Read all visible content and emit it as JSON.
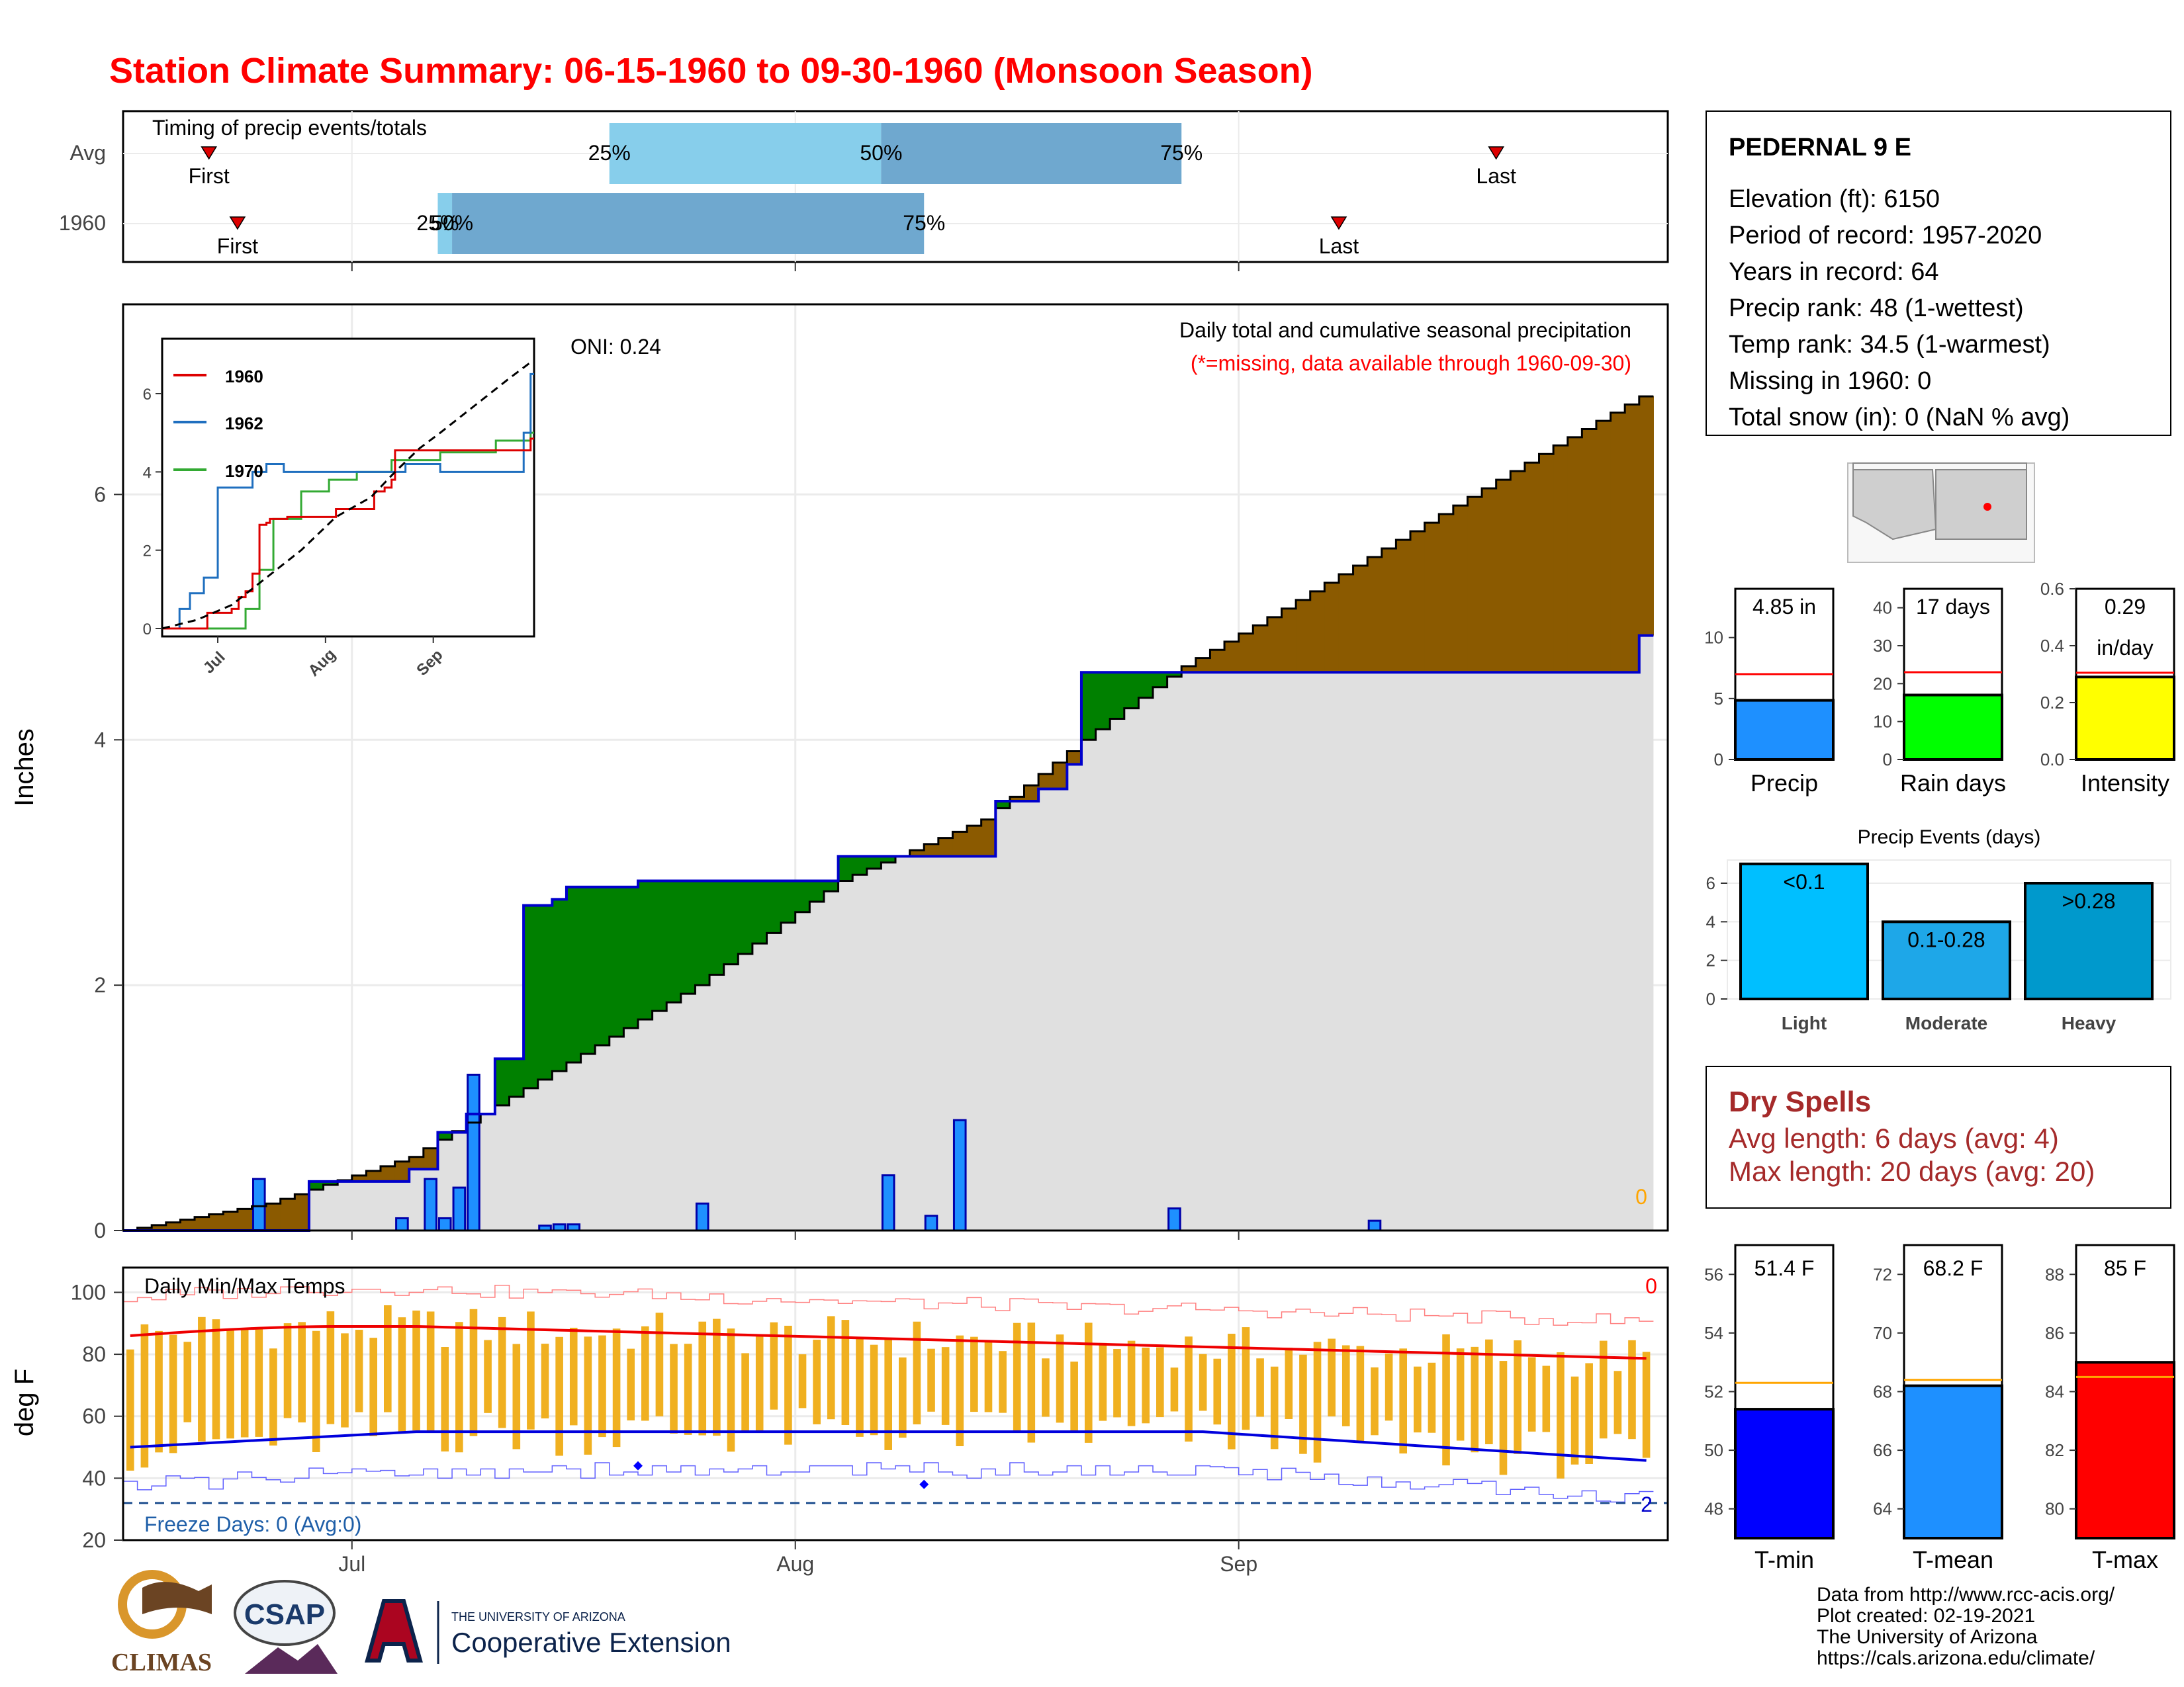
{
  "title": "Station Climate Summary: 06-15-1960 to 09-30-1960 (Monsoon Season)",
  "colors": {
    "title": "#ff0000",
    "precip_bar": "#1e90ff",
    "surplus": "#008000",
    "deficit": "#8b5a00",
    "avg_area": "#e0e0e0",
    "cum_line": "#0000cc",
    "tmax_line": "#ee0000",
    "tmin_line": "#0000dd",
    "temp_bar": "#f0b020",
    "dry_spell": "#a52a2a"
  },
  "timing_panel": {
    "title": "Timing of precip events/totals",
    "rows": [
      {
        "label": "Avg",
        "first_date": "06-21",
        "last_date": "09-19",
        "q25": "07-19",
        "q50": "08-07",
        "q75": "08-28"
      },
      {
        "label": "1960",
        "first_date": "06-23",
        "last_date": "09-08",
        "q25": "07-07",
        "q50": "07-08",
        "q75": "08-10"
      }
    ],
    "marker_labels": {
      "first": "First",
      "last": "Last",
      "q25": "25%",
      "q50": "50%",
      "q75": "75%"
    }
  },
  "main_panel": {
    "ylabel": "Inches",
    "oni": "ONI: 0.24",
    "subtitle": "Daily total and cumulative seasonal precipitation",
    "missing_note": "(*=missing, data available through 1960-09-30)",
    "missing_count": "0"
  },
  "temp_panel": {
    "ylabel": "deg F",
    "title": "Daily Min/Max Temps",
    "freeze_days": "Freeze Days: 0 (Avg:0)",
    "count_top": "0",
    "count_bottom": "2"
  },
  "x_ticks": [
    "Jul",
    "Aug",
    "Sep"
  ],
  "station": {
    "name": "PEDERNAL 9 E",
    "lines": [
      "Elevation (ft): 6150",
      "Period of record: 1957-2020",
      "Years in record: 64",
      "Precip rank: 48 (1-wettest)",
      "Temp rank: 34.5 (1-warmest)",
      "Missing in 1960: 0",
      "Total snow (in): 0 (NaN % avg)"
    ]
  },
  "summary_bars": [
    {
      "label": "Precip",
      "value": 4.85,
      "avg": 7.0,
      "value_label": "4.85 in",
      "color": "#1e90ff",
      "ymax": 14,
      "ticks": [
        "0",
        "5",
        "10"
      ],
      "tick_values": [
        0,
        5,
        10
      ]
    },
    {
      "label": "Rain days",
      "value": 17,
      "avg": 23,
      "value_label": "17 days",
      "color": "#00ff00",
      "ymax": 45,
      "ticks": [
        "0",
        "10",
        "20",
        "30",
        "40"
      ],
      "tick_values": [
        0,
        10,
        20,
        30,
        40
      ]
    },
    {
      "label": "Intensity",
      "value": 0.29,
      "avg": 0.305,
      "value_label": "0.29",
      "value_label2": "in/day",
      "color": "#ffff00",
      "ymax": 0.6,
      "ticks": [
        "0.0",
        "0.2",
        "0.4",
        "0.6"
      ],
      "tick_values": [
        0,
        0.2,
        0.4,
        0.6
      ]
    }
  ],
  "precip_events": {
    "title": "Precip Events (days)",
    "ticks": [
      "0",
      "2",
      "4",
      "6"
    ],
    "tick_values": [
      0,
      2,
      4,
      6
    ],
    "bars": [
      {
        "label": "Light",
        "value": 7,
        "bin": "<0.1",
        "color": "#00bfff"
      },
      {
        "label": "Moderate",
        "value": 4,
        "bin": "0.1-0.28",
        "color": "#1ea7e8"
      },
      {
        "label": "Heavy",
        "value": 6,
        "bin": ">0.28",
        "color": "#0099cc"
      }
    ]
  },
  "dry_spells": {
    "title": "Dry Spells",
    "avg_length": "Avg length: 6 days (avg: 4)",
    "max_length": "Max length: 20 days (avg: 20)"
  },
  "temp_summary": [
    {
      "label": "T-min",
      "value": 51.4,
      "avg": 52.3,
      "value_label": "51.4 F",
      "color": "#0000ff",
      "ymin": 47,
      "ymax": 57,
      "ticks": [
        "48",
        "50",
        "52",
        "54",
        "56"
      ],
      "tick_values": [
        48,
        50,
        52,
        54,
        56
      ]
    },
    {
      "label": "T-mean",
      "value": 68.2,
      "avg": 68.4,
      "value_label": "68.2 F",
      "color": "#1e90ff",
      "ymin": 63,
      "ymax": 73,
      "ticks": [
        "64",
        "66",
        "68",
        "70",
        "72"
      ],
      "tick_values": [
        64,
        66,
        68,
        70,
        72
      ]
    },
    {
      "label": "T-max",
      "value": 85,
      "avg": 84.5,
      "value_label": "85 F",
      "color": "#ff0000",
      "ymin": 79,
      "ymax": 89,
      "ticks": [
        "80",
        "82",
        "84",
        "86",
        "88"
      ],
      "tick_values": [
        80,
        82,
        84,
        86,
        88
      ]
    }
  ],
  "inset": {
    "legend": [
      "1960",
      "1962",
      "1970"
    ],
    "legend_colors": [
      "#dd0000",
      "#1f6fbf",
      "#33aa33"
    ],
    "yticks": [
      "0",
      "2",
      "4",
      "6"
    ],
    "xticks": [
      "Jul",
      "Aug",
      "Sep"
    ]
  },
  "footer": {
    "lines": [
      "Data from http://www.rcc-acis.org/",
      "Plot created: 02-19-2021",
      "The University of Arizona",
      "https://cals.arizona.edu/climate/"
    ],
    "climas": "CLIMAS",
    "csap": "CSAP",
    "ua_small": "THE UNIVERSITY OF ARIZONA",
    "ua_big": "Cooperative Extension"
  },
  "chart_data": {
    "type": "area",
    "xlabel": "",
    "ylabel": "Inches",
    "ylim": [
      0,
      7.5
    ],
    "x_range_days": [
      0,
      107
    ],
    "series": [
      {
        "name": "1960",
        "x_day": [
          0,
          13,
          20,
          22,
          24,
          26,
          28,
          30,
          31,
          36,
          50,
          61,
          64,
          66,
          67,
          106
        ],
        "y": [
          0.0,
          0.4,
          0.5,
          0.8,
          0.95,
          1.4,
          2.65,
          2.7,
          2.8,
          2.85,
          3.05,
          3.5,
          3.6,
          3.8,
          4.55,
          4.85
        ]
      },
      {
        "x_day": [
          0,
          10,
          20,
          30,
          40,
          50,
          60,
          67,
          74,
          80,
          90,
          100,
          106
        ],
        "y": [
          0.0,
          0.22,
          0.6,
          1.3,
          2.0,
          2.85,
          3.35,
          4.0,
          4.6,
          5.0,
          5.7,
          6.4,
          6.8
        ]
      }
    ],
    "daily_precip": [
      {
        "x_day": 9,
        "value": 0.42
      },
      {
        "x_day": 19,
        "value": 0.1
      },
      {
        "x_day": 21,
        "value": 0.42
      },
      {
        "x_day": 22,
        "value": 0.1
      },
      {
        "x_day": 23,
        "value": 0.35
      },
      {
        "x_day": 24,
        "value": 1.27
      },
      {
        "x_day": 29,
        "value": 0.04
      },
      {
        "x_day": 30,
        "value": 0.05
      },
      {
        "x_day": 31,
        "value": 0.05
      },
      {
        "x_day": 40,
        "value": 0.22
      },
      {
        "x_day": 53,
        "value": 0.45
      },
      {
        "x_day": 56,
        "value": 0.12
      },
      {
        "x_day": 58,
        "value": 0.9
      },
      {
        "x_day": 73,
        "value": 0.18
      },
      {
        "x_day": 87,
        "value": 0.08
      }
    ],
    "temps_ylim": [
      20,
      110
    ],
    "temps_yticks": [
      20,
      40,
      60,
      80,
      100
    ]
  }
}
